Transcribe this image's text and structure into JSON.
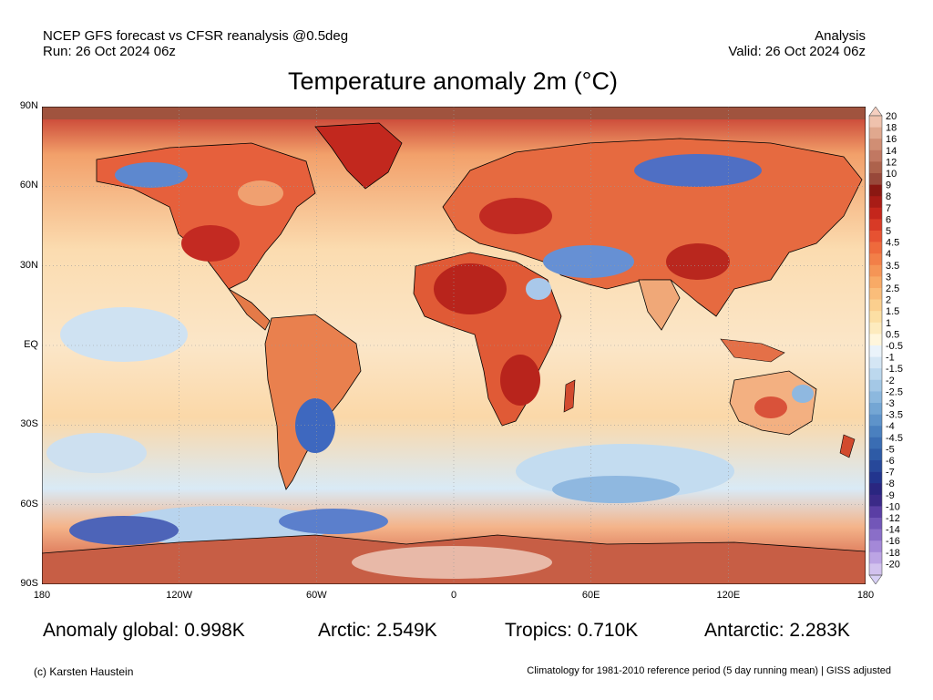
{
  "header": {
    "line1_left": "NCEP GFS forecast vs CFSR reanalysis @0.5deg",
    "line2_left": "Run: 26 Oct 2024 06z",
    "line1_right": "Analysis",
    "line2_right": "Valid: 26 Oct 2024 06z"
  },
  "title": "Temperature anomaly 2m (°C)",
  "axes": {
    "lat_labels": [
      "90N",
      "60N",
      "30N",
      "EQ",
      "30S",
      "60S",
      "90S"
    ],
    "lon_labels": [
      "180",
      "120W",
      "60W",
      "0",
      "60E",
      "120E",
      "180"
    ]
  },
  "colorbar": {
    "labels": [
      "20",
      "18",
      "16",
      "14",
      "12",
      "10",
      "9",
      "8",
      "7",
      "6",
      "5",
      "4.5",
      "4",
      "3.5",
      "3",
      "2.5",
      "2",
      "1.5",
      "1",
      "0.5",
      "-0.5",
      "-1",
      "-1.5",
      "-2",
      "-2.5",
      "-3",
      "-3.5",
      "-4",
      "-4.5",
      "-5",
      "-6",
      "-7",
      "-8",
      "-9",
      "-10",
      "-12",
      "-14",
      "-16",
      "-18",
      "-20"
    ],
    "top_triangle_color": "#f5cfc0",
    "bottom_triangle_color": "#d8d0f5"
  },
  "stats": {
    "global": "Anomaly global: 0.998K",
    "arctic": "Arctic: 2.549K",
    "tropics": "Tropics: 0.710K",
    "antarctic": "Antarctic: 2.283K"
  },
  "footer": {
    "left": "(c) Karsten Haustein",
    "right": "Climatology for 1981-2010 reference period (5 day running mean) | GISS adjusted"
  }
}
